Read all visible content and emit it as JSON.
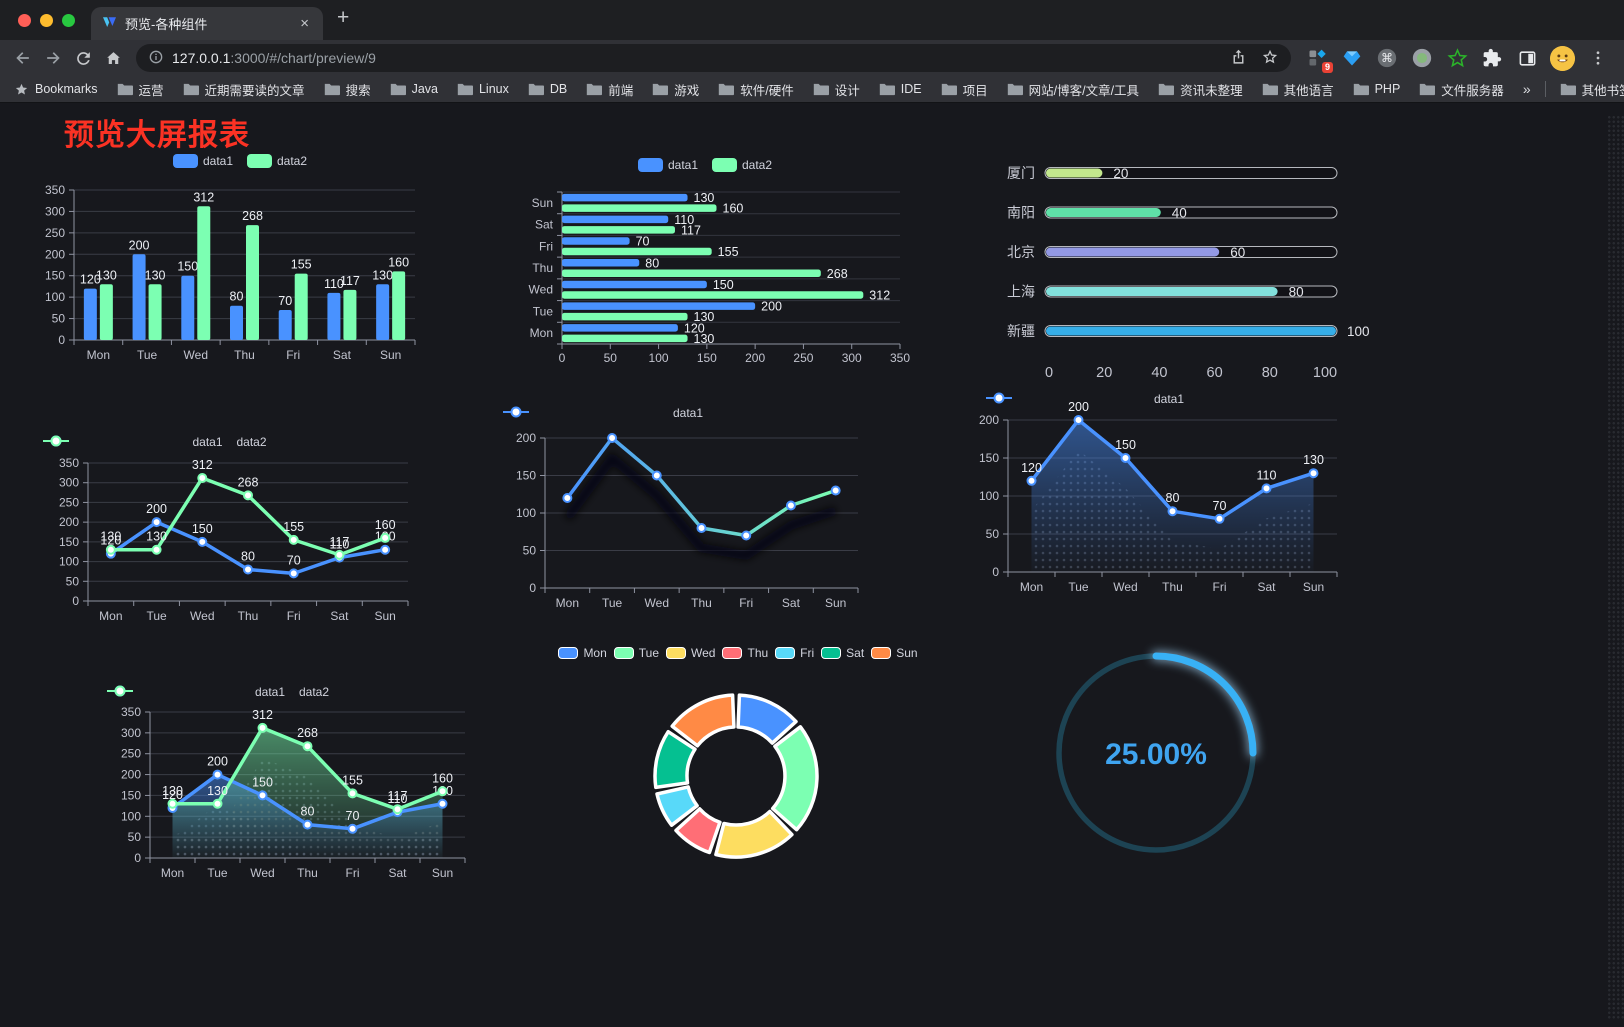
{
  "browser": {
    "tab": {
      "title": "预览-各种组件",
      "close_label": "×",
      "new_tab_label": "+"
    },
    "address": {
      "host": "127.0.0.1",
      "path": ":3000/#/chart/preview/9"
    },
    "extensions_badge": "9",
    "bookmarks": {
      "label": "Bookmarks",
      "folders": [
        "运营",
        "近期需要读的文章",
        "搜索",
        "Java",
        "Linux",
        "DB",
        "前端",
        "游戏",
        "软件/硬件",
        "设计",
        "IDE",
        "项目",
        "网站/博客/文章/工具",
        "资讯未整理",
        "其他语言",
        "PHP",
        "文件服务器"
      ],
      "overflow": "»",
      "other_bookmarks": "其他书签"
    }
  },
  "page": {
    "title": "预览大屏报表",
    "title_color": "#fb3224",
    "background": "#17181d"
  },
  "chart_data": [
    {
      "type": "bar",
      "legend": [
        "data1",
        "data2"
      ],
      "legend_position": "top",
      "categories": [
        "Mon",
        "Tue",
        "Wed",
        "Thu",
        "Fri",
        "Sat",
        "Sun"
      ],
      "series": [
        {
          "name": "data1",
          "color": "#4992ff",
          "values": [
            120,
            200,
            150,
            80,
            70,
            110,
            130
          ]
        },
        {
          "name": "data2",
          "color": "#7cffb2",
          "values": [
            130,
            130,
            312,
            268,
            155,
            117,
            160
          ]
        }
      ],
      "ylim": [
        0,
        350
      ],
      "ytick_step": 50,
      "show_labels": true,
      "grid": true
    },
    {
      "type": "hbar",
      "legend": [
        "data1",
        "data2"
      ],
      "legend_position": "top",
      "categories": [
        "Mon",
        "Tue",
        "Wed",
        "Thu",
        "Fri",
        "Sat",
        "Sun"
      ],
      "series": [
        {
          "name": "data1",
          "color": "#4992ff",
          "values": [
            120,
            200,
            150,
            80,
            70,
            110,
            130
          ]
        },
        {
          "name": "data2",
          "color": "#7cffb2",
          "values": [
            130,
            130,
            312,
            268,
            155,
            117,
            160
          ]
        }
      ],
      "xlim": [
        0,
        350
      ],
      "xtick_step": 50,
      "show_labels": true
    },
    {
      "type": "progress",
      "max": 100,
      "xticks": [
        0,
        20,
        40,
        60,
        80,
        100
      ],
      "rows": [
        {
          "label": "厦门",
          "value": 20,
          "color": "#c3e88d"
        },
        {
          "label": "南阳",
          "value": 40,
          "color": "#5fe0a8"
        },
        {
          "label": "北京",
          "value": 60,
          "color": "#9399e5"
        },
        {
          "label": "上海",
          "value": 80,
          "color": "#82e0dc"
        },
        {
          "label": "新疆",
          "value": 100,
          "color": "#36aee8"
        }
      ]
    },
    {
      "type": "line",
      "legend": [
        "data1",
        "data2"
      ],
      "categories": [
        "Mon",
        "Tue",
        "Wed",
        "Thu",
        "Fri",
        "Sat",
        "Sun"
      ],
      "series": [
        {
          "name": "data1",
          "color": "#4992ff",
          "values": [
            120,
            200,
            150,
            80,
            70,
            110,
            130
          ]
        },
        {
          "name": "data2",
          "color": "#7cffb2",
          "values": [
            130,
            130,
            312,
            268,
            155,
            117,
            160
          ]
        }
      ],
      "ylim": [
        0,
        350
      ],
      "ytick_step": 50,
      "show_labels": true
    },
    {
      "type": "line",
      "legend": [
        "data1"
      ],
      "categories": [
        "Mon",
        "Tue",
        "Wed",
        "Thu",
        "Fri",
        "Sat",
        "Sun"
      ],
      "series": [
        {
          "name": "data1",
          "gradient": [
            "#4992ff",
            "#7cffb2"
          ],
          "values": [
            120,
            200,
            150,
            80,
            70,
            110,
            130
          ]
        }
      ],
      "ylim": [
        0,
        200
      ],
      "ytick_step": 50,
      "show_labels": false,
      "line_shadow": true
    },
    {
      "type": "area",
      "legend": [
        "data1"
      ],
      "categories": [
        "Mon",
        "Tue",
        "Wed",
        "Thu",
        "Fri",
        "Sat",
        "Sun"
      ],
      "series": [
        {
          "name": "data1",
          "color": "#4992ff",
          "values": [
            120,
            200,
            150,
            80,
            70,
            110,
            130
          ],
          "area": true
        }
      ],
      "ylim": [
        0,
        200
      ],
      "ytick_step": 50,
      "show_labels": true,
      "decal_shadow": true
    },
    {
      "type": "area",
      "legend": [
        "data1",
        "data2"
      ],
      "categories": [
        "Mon",
        "Tue",
        "Wed",
        "Thu",
        "Fri",
        "Sat",
        "Sun"
      ],
      "series": [
        {
          "name": "data1",
          "color": "#4992ff",
          "values": [
            120,
            200,
            150,
            80,
            70,
            110,
            130
          ],
          "area": true
        },
        {
          "name": "data2",
          "color": "#7cffb2",
          "values": [
            130,
            130,
            312,
            268,
            155,
            117,
            160
          ],
          "area": true
        }
      ],
      "ylim": [
        0,
        350
      ],
      "ytick_step": 50,
      "show_labels": true,
      "decal_shadow": true
    },
    {
      "type": "pie",
      "donut": true,
      "legend": [
        "Mon",
        "Tue",
        "Wed",
        "Thu",
        "Fri",
        "Sat",
        "Sun"
      ],
      "categories": [
        "Mon",
        "Tue",
        "Wed",
        "Thu",
        "Fri",
        "Sat",
        "Sun"
      ],
      "values": [
        120,
        200,
        150,
        80,
        70,
        110,
        130
      ],
      "colors": [
        "#4992ff",
        "#7cffb2",
        "#fddd60",
        "#ff6e76",
        "#58d9f9",
        "#05c091",
        "#ff8a45"
      ]
    },
    {
      "type": "gauge",
      "value": 25,
      "label": "25.00%",
      "color": "#38b1f5",
      "glow_color": "#a8ddff",
      "track_color": "#1d4353"
    }
  ]
}
